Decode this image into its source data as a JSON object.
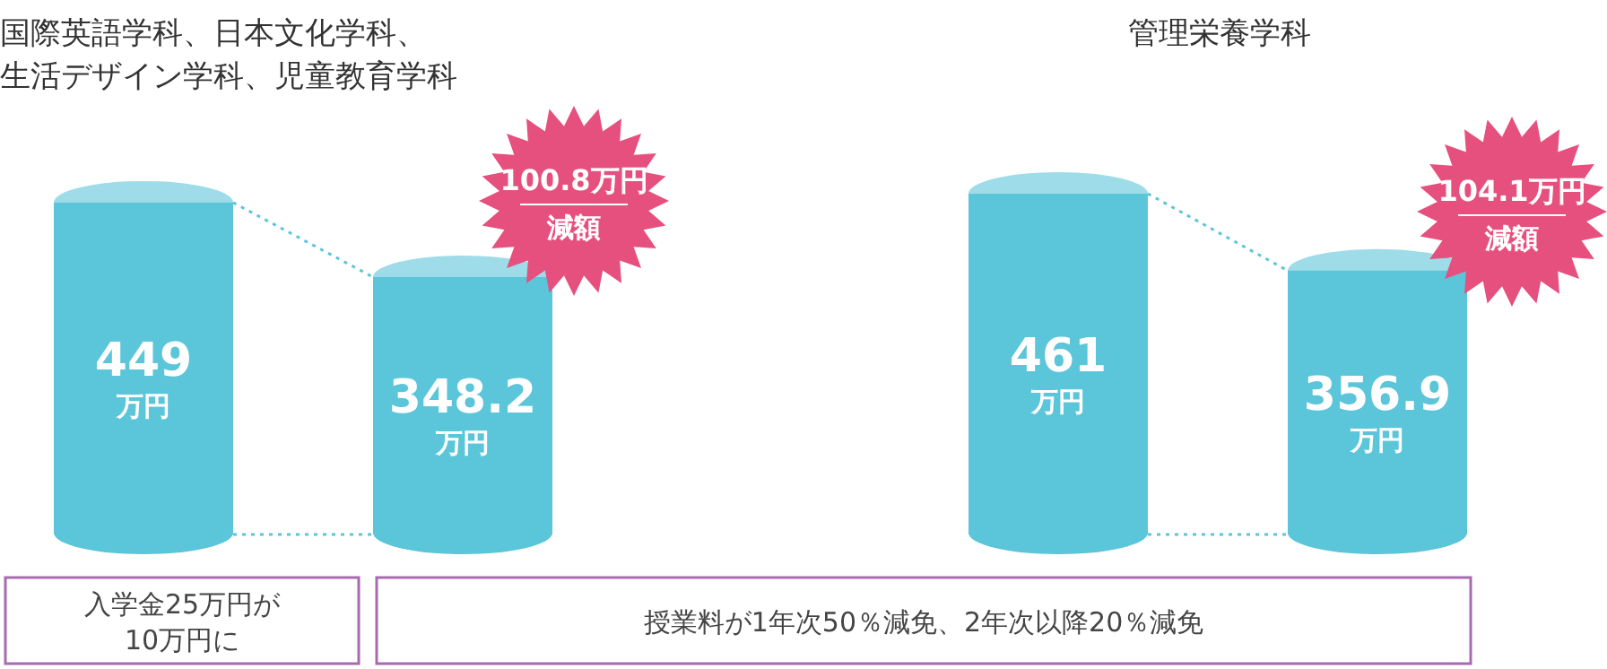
{
  "chart_data": [
    {
      "type": "bar",
      "title": "国際英語学科、日本文化学科、生活デザイン学科、児童教育学科",
      "categories": [
        null,
        null
      ],
      "values": [
        449,
        348.2
      ],
      "value_labels": [
        "449\n万円",
        "348.2\n万円"
      ],
      "color": "#5bc5d9",
      "annotations": [
        "100.8万円",
        "減額",
        "入学金25万円が10万円に"
      ]
    },
    {
      "type": "bar",
      "title": "管理栄養学科",
      "categories": [
        null,
        null
      ],
      "values": [
        461,
        356.9
      ],
      "value_labels": [
        "461\n万円",
        "356.9\n万円"
      ],
      "color": "#5bc5d9",
      "annotations": [
        "104.1万円",
        "減額",
        "授業料が1年次50％減免、2年次以降20％減免"
      ]
    }
  ]
}
